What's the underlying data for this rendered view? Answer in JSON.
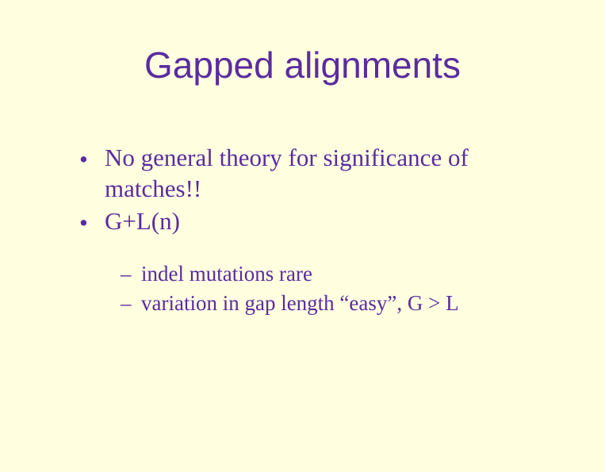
{
  "slide": {
    "background_color": "#ffffe0",
    "text_color": "#5a2ca0",
    "title": {
      "text": "Gapped alignments",
      "font_family": "Arial",
      "font_size_pt": 34
    },
    "bullets_level1": [
      {
        "marker": "•",
        "text": "No general theory for significance of matches!!"
      },
      {
        "marker": "•",
        "text": "G+L(n)"
      }
    ],
    "bullets_level2": [
      {
        "marker": "–",
        "text": "indel mutations rare"
      },
      {
        "marker": "–",
        "text": "variation in gap length “easy”, G > L"
      }
    ],
    "body_font_family": "Times New Roman",
    "body_font_size_pt": 24,
    "sub_font_size_pt": 20
  }
}
